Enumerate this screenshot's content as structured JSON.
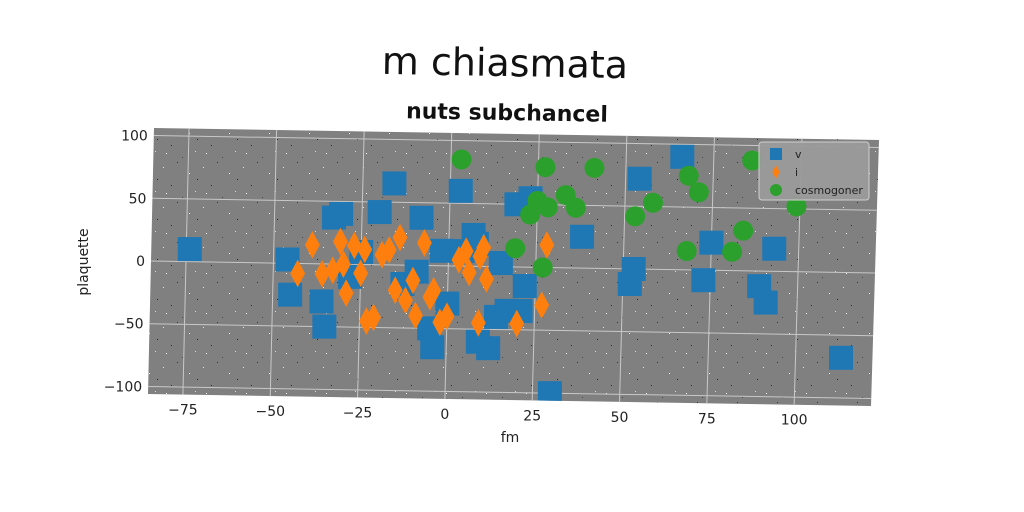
{
  "chart_data": {
    "type": "scatter",
    "title": "m chiasmata",
    "subtitle": "nuts subchancel",
    "xlabel": "fm",
    "ylabel": "plaquette",
    "xlim": [
      -85,
      122
    ],
    "ylim": [
      -106,
      106
    ],
    "x_ticks": [
      -75,
      -50,
      -25,
      0,
      25,
      50,
      75,
      100
    ],
    "x_tick_labels": [
      "−75",
      "−50",
      "−25",
      "0",
      "25",
      "50",
      "75",
      "100"
    ],
    "y_ticks": [
      -100,
      -50,
      0,
      50,
      100
    ],
    "y_tick_labels": [
      "−100",
      "−50",
      "0",
      "50",
      "100"
    ],
    "grid": true,
    "legend_position": "top-right",
    "background_color": "#808080",
    "series": [
      {
        "name": "v",
        "marker": "square",
        "color": "#1f77b4",
        "points": [
          [
            -74,
            10
          ],
          [
            -45,
            -25
          ],
          [
            -46,
            3
          ],
          [
            -36,
            -30
          ],
          [
            -35,
            -50
          ],
          [
            -33,
            37
          ],
          [
            -31,
            40
          ],
          [
            -28,
            -10
          ],
          [
            -25,
            10
          ],
          [
            -20,
            42
          ],
          [
            -16,
            65
          ],
          [
            -13,
            -15
          ],
          [
            -9,
            -5
          ],
          [
            -8,
            38
          ],
          [
            -5,
            -50
          ],
          [
            -4,
            -65
          ],
          [
            -2,
            12
          ],
          [
            0,
            -30
          ],
          [
            3,
            60
          ],
          [
            4,
            12
          ],
          [
            7,
            25
          ],
          [
            8,
            18
          ],
          [
            9,
            -60
          ],
          [
            12,
            -65
          ],
          [
            14,
            -40
          ],
          [
            15,
            3
          ],
          [
            17,
            -35
          ],
          [
            19,
            50
          ],
          [
            21,
            -35
          ],
          [
            22,
            -15
          ],
          [
            23,
            55
          ],
          [
            30,
            -100
          ],
          [
            38,
            25
          ],
          [
            52,
            -12
          ],
          [
            53,
            0
          ],
          [
            54,
            72
          ],
          [
            66,
            90
          ],
          [
            73,
            -8
          ],
          [
            75,
            22
          ],
          [
            89,
            -12
          ],
          [
            91,
            -25
          ],
          [
            93,
            18
          ],
          [
            113,
            -68
          ]
        ]
      },
      {
        "name": "i",
        "marker": "diamond",
        "color": "#ff7f0e",
        "points": [
          [
            -43,
            -8
          ],
          [
            -39,
            15
          ],
          [
            -36,
            -8
          ],
          [
            -33,
            -5
          ],
          [
            -31,
            18
          ],
          [
            -30,
            0
          ],
          [
            -29,
            -23
          ],
          [
            -27,
            15
          ],
          [
            -25,
            -7
          ],
          [
            -24,
            12
          ],
          [
            -23,
            -45
          ],
          [
            -21,
            -42
          ],
          [
            -19,
            8
          ],
          [
            -17,
            12
          ],
          [
            -15,
            -20
          ],
          [
            -14,
            22
          ],
          [
            -12,
            -28
          ],
          [
            -10,
            -12
          ],
          [
            -9,
            -40
          ],
          [
            -7,
            18
          ],
          [
            -5,
            -25
          ],
          [
            -4,
            -20
          ],
          [
            -2,
            -45
          ],
          [
            0,
            -40
          ],
          [
            3,
            5
          ],
          [
            5,
            12
          ],
          [
            6,
            -5
          ],
          [
            9,
            8
          ],
          [
            10,
            15
          ],
          [
            11,
            -10
          ],
          [
            9,
            -45
          ],
          [
            20,
            -45
          ],
          [
            27,
            -30
          ],
          [
            28,
            18
          ]
        ]
      },
      {
        "name": "cosmogoner",
        "marker": "circle",
        "color": "#2ca02c",
        "points": [
          [
            3,
            85
          ],
          [
            19,
            15
          ],
          [
            23,
            42
          ],
          [
            25,
            53
          ],
          [
            27,
            0
          ],
          [
            27,
            80
          ],
          [
            28,
            48
          ],
          [
            33,
            58
          ],
          [
            36,
            48
          ],
          [
            41,
            80
          ],
          [
            53,
            42
          ],
          [
            58,
            53
          ],
          [
            68,
            15
          ],
          [
            68,
            75
          ],
          [
            71,
            62
          ],
          [
            81,
            15
          ],
          [
            84,
            32
          ],
          [
            86,
            88
          ],
          [
            99,
            52
          ]
        ]
      }
    ]
  }
}
